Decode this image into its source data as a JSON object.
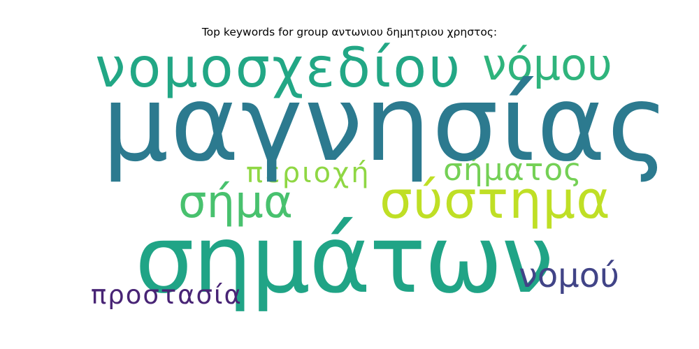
{
  "title": "Top keywords for group αντωνιου δημητριου χρηστος:",
  "words": [
    {
      "text": "μαγνησίας",
      "color": "#2c7a8f"
    },
    {
      "text": "σημάτων",
      "color": "#20a486"
    },
    {
      "text": "νομοσχεδίου",
      "color": "#22a785"
    },
    {
      "text": "νόμου",
      "color": "#2fb47c"
    },
    {
      "text": "σύστημα",
      "color": "#bfdf25"
    },
    {
      "text": "σήμα",
      "color": "#48c16e"
    },
    {
      "text": "σήματος",
      "color": "#74d055"
    },
    {
      "text": "περιοχή",
      "color": "#8fd744"
    },
    {
      "text": "νομού",
      "color": "#414487"
    },
    {
      "text": "προστασία",
      "color": "#482475"
    }
  ]
}
